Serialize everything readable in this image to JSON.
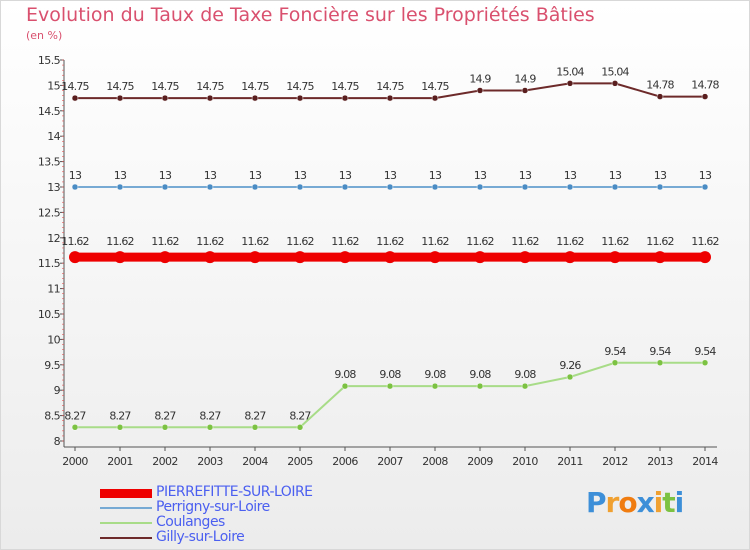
{
  "header": {
    "title": "Evolution du Taux de Taxe Foncière sur les Propriétés Bâties",
    "unit": "(en %)"
  },
  "logo": {
    "text": "Proxiti",
    "letters": [
      "P",
      "r",
      "o",
      "x",
      "i",
      "t",
      "i"
    ],
    "colors": [
      "#3d8fd8",
      "#f0a030",
      "#f07c10",
      "#3d8fd8",
      "#f0a030",
      "#7cc242",
      "#3d8fd8"
    ]
  },
  "chart_data": {
    "type": "line",
    "title": "Evolution du Taux de Taxe Foncière sur les Propriétés Bâties",
    "ylabel": "(en %)",
    "xlabel": "",
    "ylim": [
      8,
      15.5
    ],
    "yticks": [
      "8",
      "8.5",
      "9",
      "9.5",
      "10",
      "10.5",
      "11",
      "11.5",
      "12",
      "12.5",
      "13",
      "13.5",
      "14",
      "14.5",
      "15",
      "15.5"
    ],
    "x": [
      "2000",
      "2001",
      "2002",
      "2003",
      "2004",
      "2005",
      "2006",
      "2007",
      "2008",
      "2009",
      "2010",
      "2011",
      "2012",
      "2013",
      "2014"
    ],
    "series": [
      {
        "name": "Gilly-sur-Loire",
        "color": "#6d2a2a",
        "marker": "#5a1e1e",
        "values": [
          14.75,
          14.75,
          14.75,
          14.75,
          14.75,
          14.75,
          14.75,
          14.75,
          14.75,
          14.9,
          14.9,
          15.04,
          15.04,
          14.78,
          14.78
        ],
        "labels": [
          "14.75",
          "14.75",
          "14.75",
          "14.75",
          "14.75",
          "14.75",
          "14.75",
          "14.75",
          "14.75",
          "14.9",
          "14.9",
          "15.04",
          "15.04",
          "14.78",
          "14.78"
        ]
      },
      {
        "name": "Perrigny-sur-Loire",
        "color": "#77aad4",
        "marker": "#4a8cc4",
        "values": [
          13,
          13,
          13,
          13,
          13,
          13,
          13,
          13,
          13,
          13,
          13,
          13,
          13,
          13,
          13
        ],
        "labels": [
          "13",
          "13",
          "13",
          "13",
          "13",
          "13",
          "13",
          "13",
          "13",
          "13",
          "13",
          "13",
          "13",
          "13",
          "13"
        ]
      },
      {
        "name": "PIERREFITTE-SUR-LOIRE",
        "color": "#ee0000",
        "marker": "#ee0000",
        "values": [
          11.62,
          11.62,
          11.62,
          11.62,
          11.62,
          11.62,
          11.62,
          11.62,
          11.62,
          11.62,
          11.62,
          11.62,
          11.62,
          11.62,
          11.62
        ],
        "labels": [
          "11.62",
          "11.62",
          "11.62",
          "11.62",
          "11.62",
          "11.62",
          "11.62",
          "11.62",
          "11.62",
          "11.62",
          "11.62",
          "11.62",
          "11.62",
          "11.62",
          "11.62"
        ]
      },
      {
        "name": "Coulanges",
        "color": "#a8dc88",
        "marker": "#7cc242",
        "values": [
          8.27,
          8.27,
          8.27,
          8.27,
          8.27,
          8.27,
          9.08,
          9.08,
          9.08,
          9.08,
          9.08,
          9.26,
          9.54,
          9.54,
          9.54
        ],
        "labels": [
          "8.27",
          "8.27",
          "8.27",
          "8.27",
          "8.27",
          "8.27",
          "9.08",
          "9.08",
          "9.08",
          "9.08",
          "9.08",
          "9.26",
          "9.54",
          "9.54",
          "9.54"
        ]
      }
    ],
    "legend": [
      {
        "name": "PIERREFITTE-SUR-LOIRE",
        "color": "#ee0000",
        "bold": true
      },
      {
        "name": "Perrigny-sur-Loire",
        "color": "#77aad4",
        "bold": false
      },
      {
        "name": "Coulanges",
        "color": "#a8dc88",
        "bold": false
      },
      {
        "name": "Gilly-sur-Loire",
        "color": "#6d2a2a",
        "bold": false
      }
    ]
  }
}
